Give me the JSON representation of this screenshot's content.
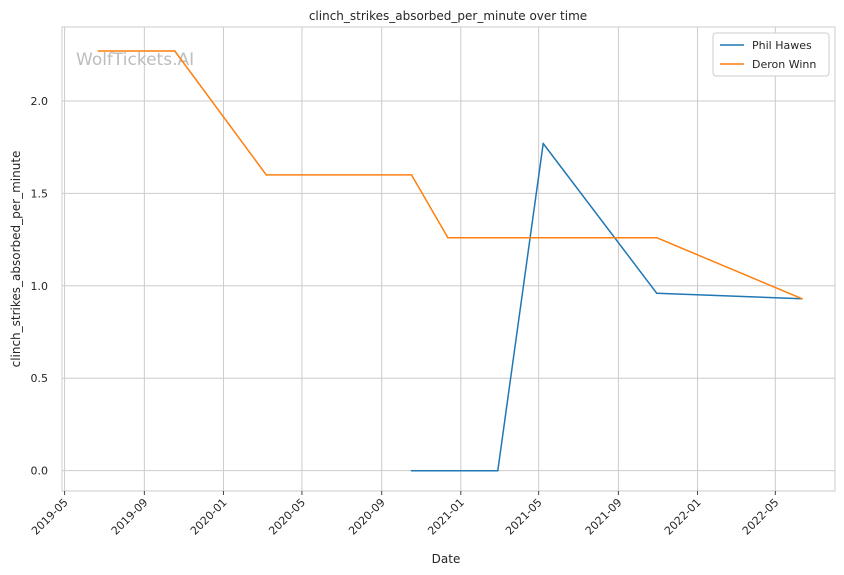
{
  "chart_data": {
    "type": "line",
    "title": "clinch_strikes_absorbed_per_minute over time",
    "xlabel": "Date",
    "ylabel": "clinch_strikes_absorbed_per_minute",
    "watermark": "WolfTickets.AI",
    "x_ticks": [
      "2019-05",
      "2019-09",
      "2020-01",
      "2020-05",
      "2020-09",
      "2021-01",
      "2021-05",
      "2021-09",
      "2022-01",
      "2022-05"
    ],
    "y_ticks": [
      "0.0",
      "0.5",
      "1.0",
      "1.5",
      "2.0"
    ],
    "xlim": [
      "2019-04-27",
      "2022-08-01"
    ],
    "ylim": [
      -0.11,
      2.4
    ],
    "grid": true,
    "legend_position": "top-right",
    "series": [
      {
        "name": "Phil Hawes",
        "color": "#1f77b4",
        "points": [
          {
            "x": "2020-10-17",
            "y": 0.0
          },
          {
            "x": "2021-02-27",
            "y": 0.0
          },
          {
            "x": "2021-05-08",
            "y": 1.77
          },
          {
            "x": "2021-10-30",
            "y": 0.96
          },
          {
            "x": "2022-06-11",
            "y": 0.93
          }
        ]
      },
      {
        "name": "Deron Winn",
        "color": "#ff7f0e",
        "points": [
          {
            "x": "2019-06-22",
            "y": 2.27
          },
          {
            "x": "2019-10-18",
            "y": 2.27
          },
          {
            "x": "2020-03-07",
            "y": 1.6
          },
          {
            "x": "2020-10-17",
            "y": 1.6
          },
          {
            "x": "2020-12-12",
            "y": 1.26
          },
          {
            "x": "2021-10-30",
            "y": 1.26
          },
          {
            "x": "2022-06-11",
            "y": 0.93
          }
        ]
      }
    ]
  }
}
